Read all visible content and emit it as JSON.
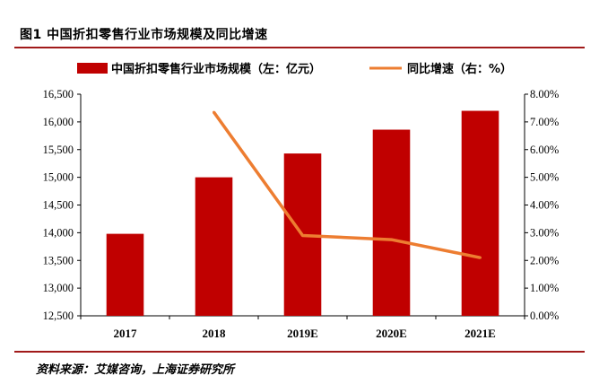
{
  "figure": {
    "title": "图1 中国折扣零售行业市场规模及同比增速",
    "source": "资料来源：艾媒咨询，上海证券研究所"
  },
  "colors": {
    "bar": "#c00000",
    "line": "#ed7d31",
    "rule": "#a11a1a",
    "axis": "#000000"
  },
  "chart_data": {
    "type": "bar",
    "categories": [
      "2017",
      "2018",
      "2019E",
      "2020E",
      "2021E"
    ],
    "series": [
      {
        "name": "中国折扣零售行业市场规模（左：亿元）",
        "type": "bar",
        "axis": "left",
        "values": [
          13980,
          15000,
          15430,
          15860,
          16200
        ]
      },
      {
        "name": "同比增速（右：%）",
        "type": "line",
        "axis": "right",
        "values": [
          null,
          7.35,
          2.9,
          2.75,
          2.1
        ]
      }
    ],
    "y_left": {
      "min": 12500,
      "max": 16500,
      "step": 500,
      "tick_labels": [
        "12,500",
        "13,000",
        "13,500",
        "14,000",
        "14,500",
        "15,000",
        "15,500",
        "16,000",
        "16,500"
      ]
    },
    "y_right": {
      "min": 0,
      "max": 8,
      "step": 1,
      "tick_labels": [
        "0.00%",
        "1.00%",
        "2.00%",
        "3.00%",
        "4.00%",
        "5.00%",
        "6.00%",
        "7.00%",
        "8.00%"
      ]
    },
    "legend_position": "top",
    "grid": false
  }
}
